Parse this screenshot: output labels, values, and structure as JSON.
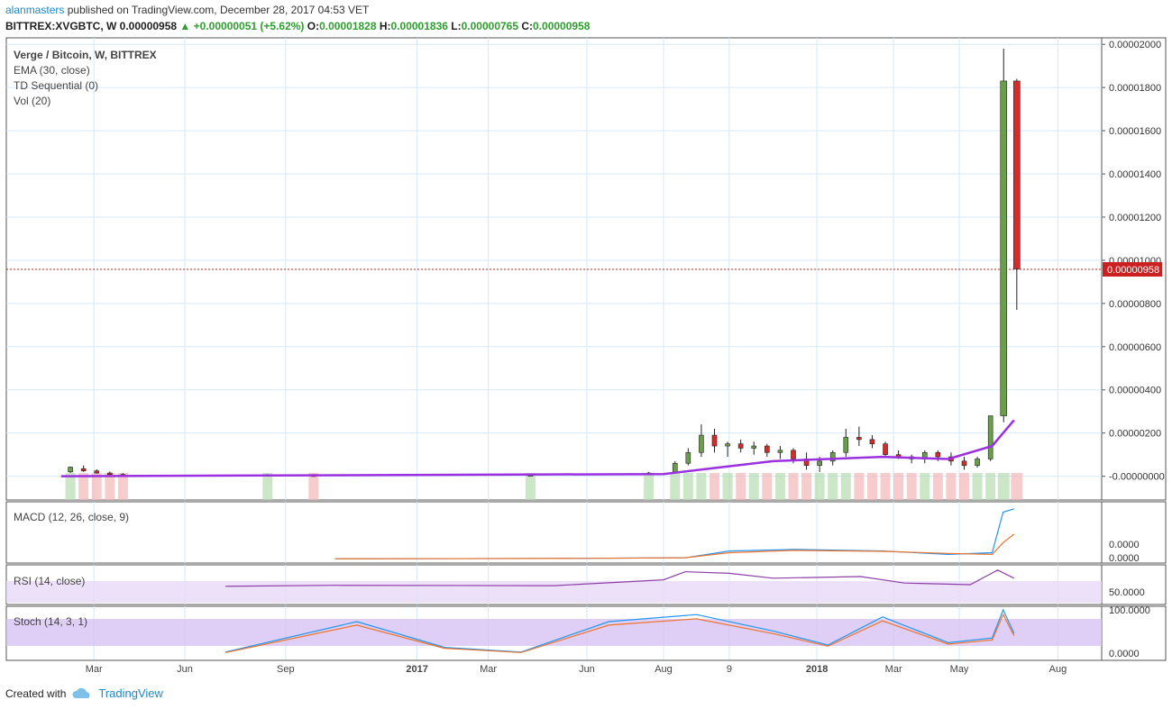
{
  "header": {
    "user": "alanmasters",
    "published": "published on TradingView.com, December 28, 2017 04:53 VET",
    "symbol": "BITTREX:XVGBTC, W",
    "price": "0.00000958",
    "change": "+0.00000051 (+5.62%)",
    "o_label": "O:",
    "o_value": "0.00001828",
    "h_label": "H:",
    "h_value": "0.00001836",
    "l_label": "L:",
    "l_value": "0.00000765",
    "c_label": "C:",
    "c_value": "0.00000958"
  },
  "legend": {
    "title": "Verge / Bitcoin, W, BITTREX",
    "ema": "EMA (30, close)",
    "td": "TD Sequential (0)",
    "vol": "Vol (20)",
    "macd": "MACD (12, 26, close, 9)",
    "rsi": "RSI (14, close)",
    "stoch": "Stoch (14, 3, 1)"
  },
  "footer": {
    "created_with": "Created with",
    "brand": "TradingView"
  },
  "colors": {
    "up": "#6a9e4a",
    "down": "#d62b2b",
    "ema": "#9b30e0",
    "grid": "#d6e8f6",
    "price_tag": "#cc1f1f",
    "macd": "#2196f3",
    "signal": "#f0732c",
    "rsi_band": "#e7d9f7",
    "rsi_line": "#8e3fa8",
    "stoch_band": "#d7c2f2"
  },
  "chart_data": [
    {
      "type": "candlestick",
      "title": "Verge / Bitcoin, W, BITTREX",
      "x_ticks": [
        "Mar",
        "Jun",
        "Sep",
        "2017",
        "Mar",
        "Jun",
        "Aug",
        "9",
        "2018",
        "Mar",
        "May",
        "Aug"
      ],
      "y_ticks": [
        "0.00002000",
        "0.00001800",
        "0.00001600",
        "0.00001400",
        "0.00001200",
        "0.00001000",
        "0.00000800",
        "0.00000600",
        "0.00000400",
        "0.00000200",
        "-0.00000000"
      ],
      "ylim": [
        -1.1e-06,
        2.03e-05
      ],
      "last_price": "0.00000958",
      "last_value": 9.58e-06,
      "candles": [
        {
          "x": 0.0585,
          "o": 2e-07,
          "h": 4.5e-07,
          "l": 1.5e-07,
          "c": 4.2e-07
        },
        {
          "x": 0.0705,
          "o": 3.5e-07,
          "h": 5e-07,
          "l": 2e-07,
          "c": 2.5e-07
        },
        {
          "x": 0.0825,
          "o": 2.5e-07,
          "h": 3.2e-07,
          "l": 1.2e-07,
          "c": 1.5e-07
        },
        {
          "x": 0.0945,
          "o": 1.5e-07,
          "h": 2.2e-07,
          "l": 5e-08,
          "c": 8e-08
        },
        {
          "x": 0.1065,
          "o": 8e-08,
          "h": 1.4e-07,
          "l": 3e-08,
          "c": 6e-08
        },
        {
          "x": 0.2385,
          "o": 4e-08,
          "h": 1e-07,
          "l": 0.0,
          "c": 7e-08
        },
        {
          "x": 0.2805,
          "o": 5e-08,
          "h": 1e-07,
          "l": 0.0,
          "c": 3e-08
        },
        {
          "x": 0.4785,
          "o": 5e-08,
          "h": 9e-08,
          "l": 0.0,
          "c": 6e-08
        },
        {
          "x": 0.5865,
          "o": 1e-07,
          "h": 2e-07,
          "l": 5e-08,
          "c": 1.5e-07
        },
        {
          "x": 0.6105,
          "o": 2e-07,
          "h": 7e-07,
          "l": 1.5e-07,
          "c": 6e-07
        },
        {
          "x": 0.6225,
          "o": 6e-07,
          "h": 1.3e-06,
          "l": 5e-07,
          "c": 1.1e-06
        },
        {
          "x": 0.6345,
          "o": 1.1e-06,
          "h": 2.4e-06,
          "l": 9e-07,
          "c": 1.9e-06
        },
        {
          "x": 0.6465,
          "o": 1.9e-06,
          "h": 2.2e-06,
          "l": 1.1e-06,
          "c": 1.4e-06
        },
        {
          "x": 0.6585,
          "o": 1.4e-06,
          "h": 1.6e-06,
          "l": 9e-07,
          "c": 1.5e-06
        },
        {
          "x": 0.6705,
          "o": 1.5e-06,
          "h": 1.7e-06,
          "l": 1.1e-06,
          "c": 1.3e-06
        },
        {
          "x": 0.6825,
          "o": 1.3e-06,
          "h": 1.6e-06,
          "l": 1e-06,
          "c": 1.4e-06
        },
        {
          "x": 0.6945,
          "o": 1.4e-06,
          "h": 1.5e-06,
          "l": 9e-07,
          "c": 1.1e-06
        },
        {
          "x": 0.7065,
          "o": 1.1e-06,
          "h": 1.4e-06,
          "l": 8e-07,
          "c": 1.2e-06
        },
        {
          "x": 0.7185,
          "o": 1.2e-06,
          "h": 1.3e-06,
          "l": 6e-07,
          "c": 8e-07
        },
        {
          "x": 0.7305,
          "o": 8e-07,
          "h": 1.1e-06,
          "l": 3e-07,
          "c": 5e-07
        },
        {
          "x": 0.7425,
          "o": 5e-07,
          "h": 9e-07,
          "l": 2e-07,
          "c": 7e-07
        },
        {
          "x": 0.7545,
          "o": 7e-07,
          "h": 1.2e-06,
          "l": 5e-07,
          "c": 1.1e-06
        },
        {
          "x": 0.7665,
          "o": 1.1e-06,
          "h": 2.2e-06,
          "l": 9e-07,
          "c": 1.8e-06
        },
        {
          "x": 0.7785,
          "o": 1.8e-06,
          "h": 2.3e-06,
          "l": 1.4e-06,
          "c": 1.7e-06
        },
        {
          "x": 0.7905,
          "o": 1.7e-06,
          "h": 1.9e-06,
          "l": 1.3e-06,
          "c": 1.5e-06
        },
        {
          "x": 0.8025,
          "o": 1.5e-06,
          "h": 1.6e-06,
          "l": 9e-07,
          "c": 1e-06
        },
        {
          "x": 0.8145,
          "o": 1e-06,
          "h": 1.2e-06,
          "l": 8e-07,
          "c": 9e-07
        },
        {
          "x": 0.8265,
          "o": 9e-07,
          "h": 1e-06,
          "l": 6e-07,
          "c": 8e-07
        },
        {
          "x": 0.8385,
          "o": 8e-07,
          "h": 1.2e-06,
          "l": 6e-07,
          "c": 1.1e-06
        },
        {
          "x": 0.8505,
          "o": 1.1e-06,
          "h": 1.2e-06,
          "l": 7e-07,
          "c": 9e-07
        },
        {
          "x": 0.8625,
          "o": 9e-07,
          "h": 1.1e-06,
          "l": 5e-07,
          "c": 7e-07
        },
        {
          "x": 0.8745,
          "o": 7e-07,
          "h": 9e-07,
          "l": 3e-07,
          "c": 5e-07
        },
        {
          "x": 0.8865,
          "o": 5e-07,
          "h": 9e-07,
          "l": 4e-07,
          "c": 8e-07
        },
        {
          "x": 0.8985,
          "o": 8e-07,
          "h": 2.8e-06,
          "l": 7e-07,
          "c": 2.8e-06
        },
        {
          "x": 0.9105,
          "o": 2.8e-06,
          "h": 1.98e-05,
          "l": 2.5e-06,
          "c": 1.83e-05
        },
        {
          "x": 0.9225,
          "o": 1.83e-05,
          "h": 1.84e-05,
          "l": 7.7e-06,
          "c": 9.6e-06
        }
      ],
      "ema": [
        [
          0.05,
          0.0
        ],
        [
          0.6,
          1e-07
        ],
        [
          0.65,
          4e-07
        ],
        [
          0.7,
          7e-07
        ],
        [
          0.75,
          8e-07
        ],
        [
          0.8,
          9e-07
        ],
        [
          0.86,
          8e-07
        ],
        [
          0.9,
          1.4e-06
        ],
        [
          0.92,
          2.6e-06
        ]
      ]
    },
    {
      "type": "line",
      "title": "MACD (12, 26, close, 9)",
      "y_ticks": [
        "0.0000",
        "0.0000"
      ],
      "series": [
        {
          "name": "MACD",
          "points": [
            [
              0.3,
              0.02
            ],
            [
              0.5,
              0.03
            ],
            [
              0.62,
              0.05
            ],
            [
              0.66,
              0.25
            ],
            [
              0.72,
              0.3
            ],
            [
              0.8,
              0.25
            ],
            [
              0.86,
              0.15
            ],
            [
              0.9,
              0.2
            ],
            [
              0.91,
              1.4
            ],
            [
              0.92,
              1.5
            ]
          ]
        },
        {
          "name": "Signal",
          "points": [
            [
              0.3,
              0.02
            ],
            [
              0.5,
              0.03
            ],
            [
              0.62,
              0.05
            ],
            [
              0.66,
              0.2
            ],
            [
              0.72,
              0.27
            ],
            [
              0.8,
              0.24
            ],
            [
              0.86,
              0.18
            ],
            [
              0.9,
              0.15
            ],
            [
              0.91,
              0.5
            ],
            [
              0.92,
              0.75
            ]
          ]
        }
      ]
    },
    {
      "type": "line",
      "title": "RSI (14, close)",
      "y_ticks": [
        "50.0000"
      ],
      "points": [
        [
          0.2,
          0.45
        ],
        [
          0.3,
          0.48
        ],
        [
          0.5,
          0.47
        ],
        [
          0.6,
          0.65
        ],
        [
          0.62,
          0.9
        ],
        [
          0.66,
          0.85
        ],
        [
          0.7,
          0.7
        ],
        [
          0.78,
          0.75
        ],
        [
          0.82,
          0.55
        ],
        [
          0.88,
          0.5
        ],
        [
          0.905,
          0.95
        ],
        [
          0.92,
          0.7
        ]
      ]
    },
    {
      "type": "line",
      "title": "Stoch (14, 3, 1)",
      "y_ticks": [
        "100.0000",
        "0.0000"
      ],
      "points": [
        [
          0.2,
          0.1
        ],
        [
          0.32,
          0.75
        ],
        [
          0.4,
          0.2
        ],
        [
          0.47,
          0.1
        ],
        [
          0.55,
          0.75
        ],
        [
          0.63,
          0.9
        ],
        [
          0.7,
          0.55
        ],
        [
          0.75,
          0.25
        ],
        [
          0.8,
          0.85
        ],
        [
          0.86,
          0.3
        ],
        [
          0.9,
          0.4
        ],
        [
          0.91,
          1.0
        ],
        [
          0.92,
          0.5
        ]
      ]
    }
  ]
}
